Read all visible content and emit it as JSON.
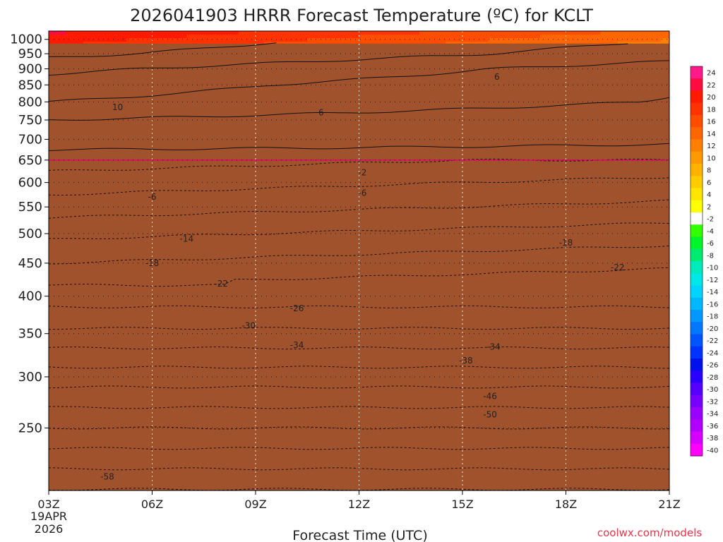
{
  "title": "2026041903 HRRR Forecast Temperature (ºC) for KCLT",
  "credit": "coolwx.com/models",
  "chart_data": {
    "type": "heatmap",
    "xlabel": "Forecast Time (UTC)",
    "ylabel": "",
    "x_ticks": [
      {
        "hour": 0,
        "label": "03Z"
      },
      {
        "hour": 3,
        "label": "06Z"
      },
      {
        "hour": 6,
        "label": "09Z"
      },
      {
        "hour": 9,
        "label": "12Z"
      },
      {
        "hour": 12,
        "label": "15Z"
      },
      {
        "hour": 15,
        "label": "18Z"
      },
      {
        "hour": 18,
        "label": "21Z"
      }
    ],
    "x_start_date": [
      "19APR",
      "2026"
    ],
    "xlim": [
      0,
      18
    ],
    "y_ticks": [
      1000,
      950,
      900,
      850,
      800,
      750,
      700,
      650,
      600,
      550,
      500,
      450,
      400,
      350,
      300,
      250
    ],
    "ylim": [
      1030,
      200
    ],
    "y_scale": "log",
    "legend": {
      "position": "right",
      "labels": [
        "24",
        "22",
        "20",
        "18",
        "16",
        "14",
        "12",
        "10",
        "8",
        "6",
        "4",
        "2",
        "-2",
        "-4",
        "-6",
        "-8",
        "-10",
        "-12",
        "-14",
        "-16",
        "-18",
        "-20",
        "-22",
        "-24",
        "-26",
        "-28",
        "-30",
        "-32",
        "-34",
        "-36",
        "-38",
        "-40"
      ],
      "colors": [
        "#ff1a8c",
        "#ff0d40",
        "#ff1a00",
        "#ff3300",
        "#ff4d00",
        "#ff6600",
        "#ff8000",
        "#ff9900",
        "#ffb300",
        "#ffcc00",
        "#ffe600",
        "#ffff00",
        "#ffffff",
        "#33ff00",
        "#00f52a",
        "#00eb70",
        "#00ebbb",
        "#00e8e8",
        "#00d5ff",
        "#00b8ff",
        "#0099ff",
        "#0077ff",
        "#0055ff",
        "#0033ff",
        "#0011ee",
        "#2a00ff",
        "#5500ff",
        "#7700ff",
        "#9900ff",
        "#b200ff",
        "#d600ff",
        "#ff00ff"
      ]
    },
    "anomaly_color": "#a0522d",
    "freezing_line_color": "#e60073",
    "contour_labels": [
      {
        "text": "-58",
        "t": 1.7,
        "p": 210
      },
      {
        "text": "-50",
        "t": 12.8,
        "p": 262
      },
      {
        "text": "-46",
        "t": 12.8,
        "p": 280
      },
      {
        "text": "-38",
        "t": 12.1,
        "p": 318
      },
      {
        "text": "-34",
        "t": 7.2,
        "p": 336
      },
      {
        "text": "-34",
        "t": 12.9,
        "p": 334
      },
      {
        "text": "-30",
        "t": 5.8,
        "p": 360
      },
      {
        "text": "-26",
        "t": 7.2,
        "p": 383
      },
      {
        "text": "-22",
        "t": 5.0,
        "p": 418
      },
      {
        "text": "-22",
        "t": 16.5,
        "p": 443
      },
      {
        "text": "-18",
        "t": 3.0,
        "p": 450
      },
      {
        "text": "-18",
        "t": 15.0,
        "p": 484
      },
      {
        "text": "-14",
        "t": 4.0,
        "p": 491
      },
      {
        "text": "-6",
        "t": 3.0,
        "p": 570
      },
      {
        "text": "-6",
        "t": 9.1,
        "p": 578
      },
      {
        "text": "-2",
        "t": 9.1,
        "p": 622
      },
      {
        "text": "10",
        "t": 2.0,
        "p": 785
      },
      {
        "text": "6",
        "t": 7.9,
        "p": 770
      },
      {
        "text": "6",
        "t": 13.0,
        "p": 875
      }
    ],
    "layers": [
      {
        "p": 1000,
        "temp": 21
      },
      {
        "p": 950,
        "temp": 19
      },
      {
        "p": 900,
        "temp": 15
      },
      {
        "p": 850,
        "temp": 12
      },
      {
        "p": 800,
        "temp": 10
      },
      {
        "p": 750,
        "temp": 6
      },
      {
        "p": 700,
        "temp": 4
      },
      {
        "p": 650,
        "temp": 0
      },
      {
        "p": 600,
        "temp": -4
      },
      {
        "p": 550,
        "temp": -8
      },
      {
        "p": 500,
        "temp": -13
      },
      {
        "p": 450,
        "temp": -18
      },
      {
        "p": 400,
        "temp": -24
      },
      {
        "p": 350,
        "temp": -31
      },
      {
        "p": 300,
        "temp": -40
      },
      {
        "p": 250,
        "temp": -50
      }
    ]
  }
}
